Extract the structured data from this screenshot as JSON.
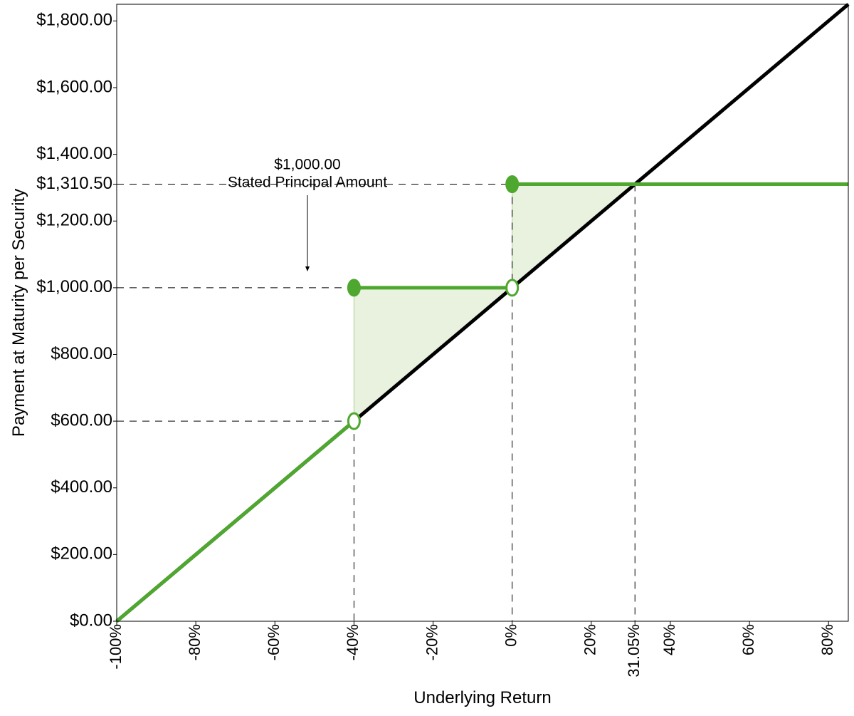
{
  "chart_data": {
    "type": "line",
    "x_label": "Underlying Return",
    "y_label": "Payment at Maturity per Security",
    "xlim": [
      -100,
      85
    ],
    "ylim": [
      0,
      1850
    ],
    "xticks": [
      {
        "value": -100,
        "label": "-100%"
      },
      {
        "value": -80,
        "label": "-80%"
      },
      {
        "value": -60,
        "label": "-60%"
      },
      {
        "value": -40,
        "label": "-40%"
      },
      {
        "value": -20,
        "label": "-20%"
      },
      {
        "value": 0,
        "label": "0%"
      },
      {
        "value": 20,
        "label": "20%"
      },
      {
        "value": 31.05,
        "label": "31.05%"
      },
      {
        "value": 40,
        "label": "40%"
      },
      {
        "value": 60,
        "label": "60%"
      },
      {
        "value": 80,
        "label": "80%"
      }
    ],
    "yticks": [
      {
        "value": 0,
        "label": "$0.00"
      },
      {
        "value": 200,
        "label": "$200.00"
      },
      {
        "value": 400,
        "label": "$400.00"
      },
      {
        "value": 600,
        "label": "$600.00"
      },
      {
        "value": 800,
        "label": "$800.00"
      },
      {
        "value": 1000,
        "label": "$1,000.00"
      },
      {
        "value": 1200,
        "label": "$1,200.00"
      },
      {
        "value": 1310.5,
        "label": "$1,310.50"
      },
      {
        "value": 1400,
        "label": "$1,400.00"
      },
      {
        "value": 1600,
        "label": "$1,600.00"
      },
      {
        "value": 1800,
        "label": "$1,800.00"
      }
    ],
    "series": [
      {
        "color": "#000000",
        "x": [
          -100,
          85
        ],
        "values": [
          0,
          1850
        ]
      },
      {
        "color": "#4ea72e",
        "x": [
          -100,
          -40,
          null,
          -40,
          0,
          null,
          0,
          85
        ],
        "values": [
          0,
          600,
          null,
          1000,
          1000,
          null,
          1310.5,
          1310.5
        ]
      }
    ],
    "markers": [
      {
        "x": -40,
        "y": 1000,
        "filled": true
      },
      {
        "x": 0,
        "y": 1310.5,
        "filled": true
      },
      {
        "x": -40,
        "y": 600,
        "filled": false
      },
      {
        "x": 0,
        "y": 1000,
        "filled": false
      }
    ],
    "marker_color": "#4ea72e",
    "shaded_regions": [
      {
        "x": [
          -40,
          -40,
          0
        ],
        "values": [
          600,
          1000,
          1000
        ]
      },
      {
        "x": [
          0,
          0,
          31.05
        ],
        "values": [
          1000,
          1310.5,
          1310.5
        ]
      }
    ],
    "shade_color": "#e8f2df",
    "h_guides": [
      {
        "y": 600,
        "x_end": -40
      },
      {
        "y": 1000,
        "x_end": -40
      },
      {
        "y": 1310.5,
        "x_end": 0
      }
    ],
    "v_guides": [
      {
        "x": -40,
        "y_end": 600
      },
      {
        "x": 0,
        "y_end": 1310.5
      },
      {
        "x": 31.05,
        "y_end": 1310.5
      }
    ],
    "annotation": {
      "lines": [
        "$1,000.00",
        "Stated Principal Amount"
      ]
    }
  }
}
